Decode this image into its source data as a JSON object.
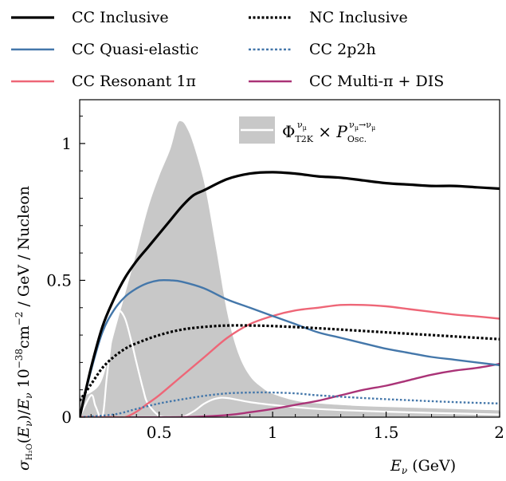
{
  "chart_data": {
    "type": "line",
    "xlabel": "E_ν (GeV)",
    "ylabel": "σ_H₂O(E_ν)/E_ν 10⁻³⁸cm⁻² / GeV / Nucleon",
    "xlim": [
      0.15,
      2.0
    ],
    "ylim": [
      0.0,
      1.16
    ],
    "x_ticks": [
      0.5,
      1.0,
      1.5,
      2.0
    ],
    "x_tick_labels": [
      "0.5",
      "1",
      "1.5",
      "2"
    ],
    "y_ticks": [
      0.0,
      0.5,
      1.0
    ],
    "y_tick_labels": [
      "0",
      "0.5",
      "1"
    ],
    "legend_placement": "above plot",
    "flux_label": "Φ_T2K^{ν_μ} × P_Osc.^{ν_μ→ν_μ}",
    "series": [
      {
        "name": "CC Inclusive",
        "color": "#000000",
        "style": "solid",
        "x": [
          0.15,
          0.2,
          0.25,
          0.3,
          0.35,
          0.4,
          0.45,
          0.5,
          0.55,
          0.6,
          0.65,
          0.7,
          0.8,
          0.9,
          1.0,
          1.1,
          1.2,
          1.3,
          1.4,
          1.5,
          1.6,
          1.7,
          1.8,
          1.9,
          2.0
        ],
        "y": [
          0.0,
          0.18,
          0.33,
          0.43,
          0.51,
          0.57,
          0.62,
          0.67,
          0.72,
          0.77,
          0.81,
          0.83,
          0.87,
          0.89,
          0.895,
          0.89,
          0.88,
          0.875,
          0.865,
          0.855,
          0.85,
          0.845,
          0.845,
          0.84,
          0.835
        ]
      },
      {
        "name": "NC Inclusive",
        "color": "#000000",
        "style": "dotted",
        "x": [
          0.15,
          0.2,
          0.25,
          0.3,
          0.35,
          0.4,
          0.5,
          0.6,
          0.7,
          0.8,
          0.9,
          1.0,
          1.2,
          1.4,
          1.6,
          1.8,
          2.0
        ],
        "y": [
          0.06,
          0.12,
          0.18,
          0.22,
          0.25,
          0.27,
          0.3,
          0.32,
          0.33,
          0.335,
          0.335,
          0.333,
          0.325,
          0.315,
          0.305,
          0.295,
          0.285
        ]
      },
      {
        "name": "CC Quasi-elastic",
        "color": "#4477aa",
        "style": "solid",
        "x": [
          0.15,
          0.2,
          0.25,
          0.3,
          0.35,
          0.4,
          0.45,
          0.5,
          0.55,
          0.6,
          0.7,
          0.8,
          0.9,
          1.0,
          1.1,
          1.2,
          1.3,
          1.4,
          1.5,
          1.6,
          1.7,
          1.8,
          1.9,
          2.0
        ],
        "y": [
          0.0,
          0.17,
          0.31,
          0.39,
          0.44,
          0.47,
          0.49,
          0.5,
          0.5,
          0.495,
          0.47,
          0.43,
          0.4,
          0.37,
          0.34,
          0.31,
          0.29,
          0.27,
          0.25,
          0.235,
          0.22,
          0.21,
          0.2,
          0.19
        ]
      },
      {
        "name": "CC 2p2h",
        "color": "#4477aa",
        "style": "dotted",
        "x": [
          0.15,
          0.3,
          0.4,
          0.5,
          0.6,
          0.7,
          0.8,
          0.9,
          1.0,
          1.1,
          1.2,
          1.4,
          1.6,
          1.8,
          2.0
        ],
        "y": [
          0.0,
          0.01,
          0.03,
          0.05,
          0.065,
          0.078,
          0.087,
          0.09,
          0.09,
          0.087,
          0.08,
          0.07,
          0.062,
          0.055,
          0.05
        ]
      },
      {
        "name": "CC Resonant 1π",
        "color": "#ee6677",
        "style": "solid",
        "x": [
          0.15,
          0.3,
          0.35,
          0.4,
          0.45,
          0.5,
          0.6,
          0.7,
          0.8,
          0.9,
          1.0,
          1.1,
          1.2,
          1.3,
          1.4,
          1.5,
          1.6,
          1.7,
          1.8,
          1.9,
          2.0
        ],
        "y": [
          0.0,
          0.0,
          0.0,
          0.02,
          0.05,
          0.08,
          0.15,
          0.22,
          0.29,
          0.34,
          0.37,
          0.39,
          0.4,
          0.41,
          0.41,
          0.405,
          0.395,
          0.385,
          0.375,
          0.368,
          0.36
        ]
      },
      {
        "name": "CC Multi-π + DIS",
        "color": "#aa3377",
        "style": "solid",
        "x": [
          0.15,
          0.6,
          0.8,
          0.9,
          1.0,
          1.1,
          1.2,
          1.3,
          1.4,
          1.5,
          1.6,
          1.7,
          1.8,
          1.9,
          2.0
        ],
        "y": [
          0.0,
          0.0,
          0.008,
          0.018,
          0.03,
          0.045,
          0.06,
          0.08,
          0.1,
          0.115,
          0.135,
          0.155,
          0.17,
          0.18,
          0.195
        ]
      }
    ],
    "flux": {
      "name": "flux",
      "color": "#c8c8c8",
      "x": [
        0.15,
        0.2,
        0.25,
        0.3,
        0.35,
        0.4,
        0.45,
        0.5,
        0.55,
        0.58,
        0.6,
        0.62,
        0.65,
        0.7,
        0.75,
        0.8,
        0.85,
        0.9,
        0.95,
        1.0,
        1.1,
        1.2,
        1.4,
        1.6,
        1.8,
        2.0
      ],
      "y": [
        0.08,
        0.09,
        0.14,
        0.3,
        0.45,
        0.6,
        0.76,
        0.88,
        0.98,
        1.07,
        1.08,
        1.06,
        1.0,
        0.85,
        0.62,
        0.38,
        0.23,
        0.15,
        0.11,
        0.085,
        0.06,
        0.05,
        0.04,
        0.035,
        0.03,
        0.025
      ]
    },
    "oscillated_flux": {
      "name": "oscillated flux",
      "color": "#ffffff",
      "x": [
        0.15,
        0.2,
        0.22,
        0.25,
        0.27,
        0.3,
        0.32,
        0.35,
        0.38,
        0.4,
        0.43,
        0.45,
        0.5,
        0.55,
        0.6,
        0.65,
        0.7,
        0.75,
        0.8,
        0.9,
        1.0,
        1.2,
        1.5,
        2.0
      ],
      "y": [
        0.0,
        0.08,
        0.04,
        0.0,
        0.15,
        0.35,
        0.39,
        0.36,
        0.27,
        0.2,
        0.1,
        0.05,
        0.005,
        0.0,
        0.0,
        0.02,
        0.05,
        0.068,
        0.07,
        0.055,
        0.045,
        0.03,
        0.02,
        0.01
      ]
    }
  }
}
